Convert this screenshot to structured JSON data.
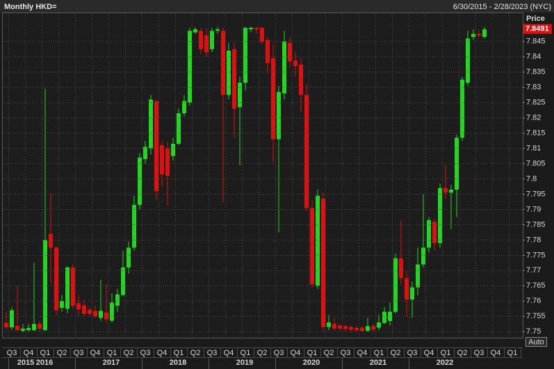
{
  "chart_data": {
    "type": "candlestick",
    "title": "Monthly HKD=",
    "date_range": "6/30/2015 - 2/28/2023 (NYC)",
    "y_axis_label": "Price",
    "scale_mode": "Auto",
    "last_price": 7.8491,
    "up_color": "#22d622",
    "down_color": "#e01010",
    "grid": true,
    "ylim": [
      7.748,
      7.8545
    ],
    "yticks": [
      7.75,
      7.755,
      7.76,
      7.765,
      7.77,
      7.775,
      7.78,
      7.785,
      7.79,
      7.795,
      7.8,
      7.805,
      7.81,
      7.815,
      7.82,
      7.825,
      7.83,
      7.835,
      7.84,
      7.845
    ],
    "quarter_labels": [
      "Q3",
      "Q4",
      "Q1",
      "Q2",
      "Q3",
      "Q4",
      "Q1",
      "Q2",
      "Q3",
      "Q4",
      "Q1",
      "Q2",
      "Q3",
      "Q4",
      "Q1",
      "Q2",
      "Q3",
      "Q4",
      "Q1",
      "Q2",
      "Q3",
      "Q4",
      "Q1",
      "Q2",
      "Q3",
      "Q4",
      "Q1",
      "Q2",
      "Q3",
      "Q4",
      "Q1"
    ],
    "year_labels": [
      "2015",
      "2016",
      "2017",
      "2018",
      "2019",
      "2020",
      "2021",
      "2022"
    ],
    "open": [
      7.7529,
      7.7514,
      7.7519,
      7.7503,
      7.7505,
      7.7505,
      7.7525,
      7.7505,
      7.782,
      7.7775,
      7.7578,
      7.7575,
      7.771,
      7.7593,
      7.7586,
      7.7572,
      7.7568,
      7.7545,
      7.7563,
      7.7536,
      7.7585,
      7.762,
      7.771,
      7.7775,
      7.7915,
      7.8065,
      7.81,
      7.8255,
      7.811,
      7.81,
      7.8075,
      7.8115,
      7.8215,
      7.825,
      7.848,
      7.8485,
      7.847,
      7.8425,
      7.8485,
      7.8485,
      7.8275,
      7.8425,
      7.8235,
      7.8315,
      7.849,
      7.8495,
      7.8495,
      7.8455,
      7.8395,
      7.813,
      7.828,
      7.8445,
      7.8388,
      7.8375,
      7.8275,
      7.7905,
      7.765,
      7.7935,
      7.7515,
      7.7525,
      7.752,
      7.7518,
      7.7515,
      7.7512,
      7.7513,
      7.7503,
      7.7518,
      7.7513,
      7.7528,
      7.7535,
      7.7565,
      7.774,
      7.7675,
      7.7605,
      7.7645,
      7.772,
      7.7775,
      7.786,
      7.779,
      7.797,
      7.7955,
      7.7965,
      7.8135,
      7.8315,
      7.8465,
      7.8475,
      7.8465
    ],
    "high": [
      7.7565,
      7.758,
      7.765,
      7.7525,
      7.7525,
      7.7725,
      7.7535,
      7.8295,
      7.7955,
      7.778,
      7.762,
      7.7715,
      7.772,
      7.762,
      7.7605,
      7.758,
      7.7585,
      7.767,
      7.7655,
      7.7625,
      7.764,
      7.7765,
      7.7795,
      7.7945,
      7.8085,
      7.8125,
      7.8275,
      7.826,
      7.8125,
      7.812,
      7.8135,
      7.823,
      7.8275,
      7.8495,
      7.8497,
      7.8495,
      7.8495,
      7.8495,
      7.8498,
      7.8495,
      7.8445,
      7.8445,
      7.8335,
      7.8498,
      7.8498,
      7.8498,
      7.8498,
      7.8465,
      7.844,
      7.8305,
      7.8485,
      7.8465,
      7.8415,
      7.8395,
      7.831,
      7.793,
      7.7965,
      7.7955,
      7.7555,
      7.7545,
      7.7525,
      7.7522,
      7.752,
      7.7518,
      7.7518,
      7.7545,
      7.7525,
      7.7555,
      7.758,
      7.7595,
      7.7755,
      7.7865,
      7.7695,
      7.7665,
      7.7775,
      7.795,
      7.7875,
      7.787,
      7.7985,
      7.8045,
      7.798,
      7.8145,
      7.8335,
      7.8485,
      7.849,
      7.8485,
      7.8498
    ],
    "low": [
      7.7505,
      7.7505,
      7.7502,
      7.7498,
      7.75,
      7.7502,
      7.75,
      7.7502,
      7.766,
      7.7555,
      7.7565,
      7.756,
      7.7575,
      7.755,
      7.755,
      7.7552,
      7.7545,
      7.7535,
      7.753,
      7.753,
      7.7565,
      7.7615,
      7.769,
      7.7765,
      7.79,
      7.805,
      7.808,
      7.793,
      7.7975,
      7.7915,
      7.806,
      7.811,
      7.8205,
      7.824,
      7.8475,
      7.841,
      7.84,
      7.8415,
      7.8475,
      7.7925,
      7.826,
      7.8135,
      7.8045,
      7.829,
      7.848,
      7.8475,
      7.844,
      7.8345,
      7.8055,
      7.7825,
      7.826,
      7.8365,
      7.8335,
      7.822,
      7.7895,
      7.7645,
      7.764,
      7.75,
      7.7505,
      7.7505,
      7.7502,
      7.7502,
      7.75,
      7.75,
      7.7498,
      7.7498,
      7.75,
      7.7505,
      7.7525,
      7.752,
      7.756,
      7.7655,
      7.755,
      7.7545,
      7.762,
      7.771,
      7.776,
      7.7765,
      7.7775,
      7.7935,
      7.7835,
      7.7875,
      7.8125,
      7.8305,
      7.8455,
      7.8465,
      7.846
    ],
    "close": [
      7.7514,
      7.757,
      7.7505,
      7.751,
      7.7512,
      7.7525,
      7.751,
      7.78,
      7.7775,
      7.757,
      7.76,
      7.771,
      7.7585,
      7.7573,
      7.7558,
      7.7558,
      7.755,
      7.7568,
      7.754,
      7.7595,
      7.7622,
      7.771,
      7.7775,
      7.7915,
      7.807,
      7.8105,
      7.826,
      7.796,
      7.8015,
      7.801,
      7.8115,
      7.8215,
      7.8255,
      7.8485,
      7.849,
      7.8425,
      7.8415,
      7.8485,
      7.849,
      7.8275,
      7.842,
      7.823,
      7.8315,
      7.8495,
      7.8495,
      7.849,
      7.845,
      7.838,
      7.813,
      7.8285,
      7.845,
      7.8385,
      7.837,
      7.8275,
      7.7905,
      7.7655,
      7.7945,
      7.7515,
      7.753,
      7.751,
      7.751,
      7.7508,
      7.7506,
      7.7505,
      7.7503,
      7.7518,
      7.7507,
      7.753,
      7.7565,
      7.7565,
      7.774,
      7.7675,
      7.7605,
      7.7645,
      7.772,
      7.7775,
      7.7865,
      7.779,
      7.797,
      7.7955,
      7.7965,
      7.8135,
      7.8325,
      7.846,
      7.8475,
      7.847,
      7.849
    ]
  }
}
